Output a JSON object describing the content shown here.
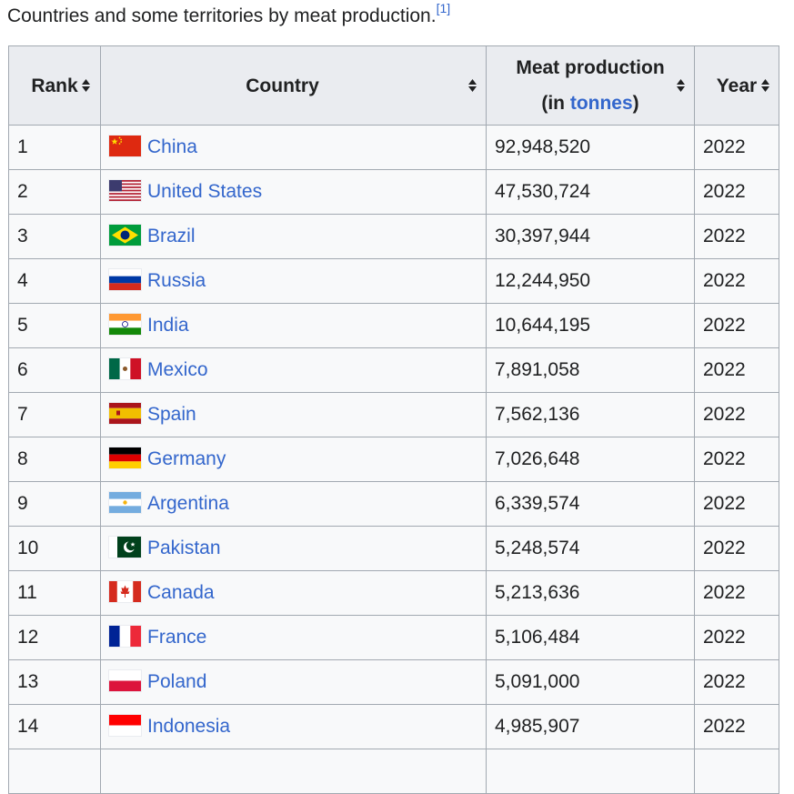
{
  "caption": {
    "text": "Countries and some territories by meat production.",
    "ref": "[1]"
  },
  "table": {
    "headers": {
      "rank": "Rank",
      "country": "Country",
      "meat_line1": "Meat production",
      "meat_line2_prefix": "(in ",
      "meat_line2_link": "tonnes",
      "meat_line2_suffix": ")",
      "year": "Year"
    },
    "sort_icon": "sort-arrows-icon",
    "rows": [
      {
        "rank": "1",
        "country": "China",
        "flag": "china-flag-icon",
        "production": "92,948,520",
        "year": "2022"
      },
      {
        "rank": "2",
        "country": "United States",
        "flag": "united-states-flag-icon",
        "production": "47,530,724",
        "year": "2022"
      },
      {
        "rank": "3",
        "country": "Brazil",
        "flag": "brazil-flag-icon",
        "production": "30,397,944",
        "year": "2022"
      },
      {
        "rank": "4",
        "country": "Russia",
        "flag": "russia-flag-icon",
        "production": "12,244,950",
        "year": "2022"
      },
      {
        "rank": "5",
        "country": "India",
        "flag": "india-flag-icon",
        "production": "10,644,195",
        "year": "2022"
      },
      {
        "rank": "6",
        "country": "Mexico",
        "flag": "mexico-flag-icon",
        "production": "7,891,058",
        "year": "2022"
      },
      {
        "rank": "7",
        "country": "Spain",
        "flag": "spain-flag-icon",
        "production": "7,562,136",
        "year": "2022"
      },
      {
        "rank": "8",
        "country": "Germany",
        "flag": "germany-flag-icon",
        "production": "7,026,648",
        "year": "2022"
      },
      {
        "rank": "9",
        "country": "Argentina",
        "flag": "argentina-flag-icon",
        "production": "6,339,574",
        "year": "2022"
      },
      {
        "rank": "10",
        "country": "Pakistan",
        "flag": "pakistan-flag-icon",
        "production": "5,248,574",
        "year": "2022"
      },
      {
        "rank": "11",
        "country": "Canada",
        "flag": "canada-flag-icon",
        "production": "5,213,636",
        "year": "2022"
      },
      {
        "rank": "12",
        "country": "France",
        "flag": "france-flag-icon",
        "production": "5,106,484",
        "year": "2022"
      },
      {
        "rank": "13",
        "country": "Poland",
        "flag": "poland-flag-icon",
        "production": "5,091,000",
        "year": "2022"
      },
      {
        "rank": "14",
        "country": "Indonesia",
        "flag": "indonesia-flag-icon",
        "production": "4,985,907",
        "year": "2022"
      }
    ]
  },
  "colors": {
    "link": "#3366cc",
    "text": "#202122",
    "header_bg": "#eaecf0",
    "cell_bg": "#f8f9fa",
    "border": "#a2a9b1"
  }
}
